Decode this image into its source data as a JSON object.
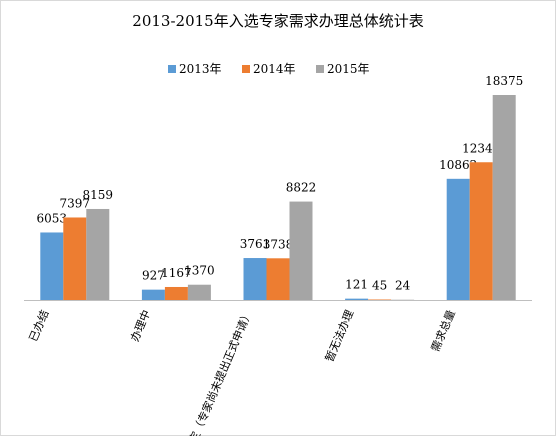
{
  "chart_data": {
    "type": "bar",
    "title": "2013-2015年入选专家需求办理总体统计表",
    "categories": [
      "已办结",
      "办理中",
      "待定（专家尚未提出正式申请）",
      "暂无法办理",
      "需求总量"
    ],
    "series": [
      {
        "name": "2013年",
        "color": "#5b9bd5",
        "values": [
          6053,
          927,
          3761,
          121,
          10862
        ]
      },
      {
        "name": "2014年",
        "color": "#ed7d31",
        "values": [
          7397,
          1167,
          3738,
          45,
          12347
        ]
      },
      {
        "name": "2015年",
        "color": "#a5a5a5",
        "values": [
          8159,
          1370,
          8822,
          24,
          18375
        ]
      }
    ],
    "ylim": [
      0,
      20000
    ],
    "grid": false,
    "legend_position": "top-center"
  }
}
